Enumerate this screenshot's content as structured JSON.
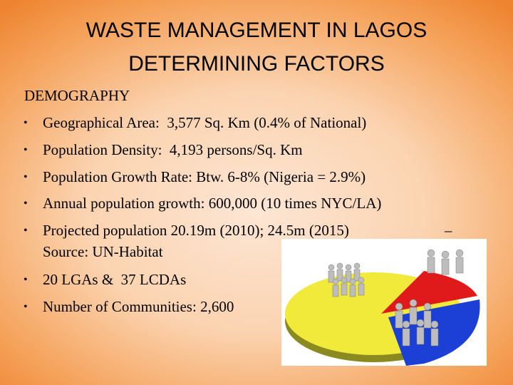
{
  "title": {
    "line1": "WASTE MANAGEMENT IN LAGOS",
    "line2": "DETERMINING FACTORS"
  },
  "section": "DEMOGRAPHY",
  "bullets": [
    {
      "text": "Geographical Area:  3,577 Sq. Km (0.4% of National)"
    },
    {
      "text": "Population Density:  4,193 persons/Sq. Km"
    },
    {
      "text": "Population Growth Rate: Btw. 6-8% (Nigeria = 2.9%)"
    },
    {
      "text": "Annual population growth: 600,000 (10 times NYC/LA)"
    },
    {
      "text": "Projected population 20.19m (2010); 24.5m (2015)",
      "dash": "–",
      "source": "Source: UN-Habitat"
    },
    {
      "text": "20 LGAs &  37 LCDAs"
    },
    {
      "text": "Number of Communities: 2,600"
    }
  ]
}
